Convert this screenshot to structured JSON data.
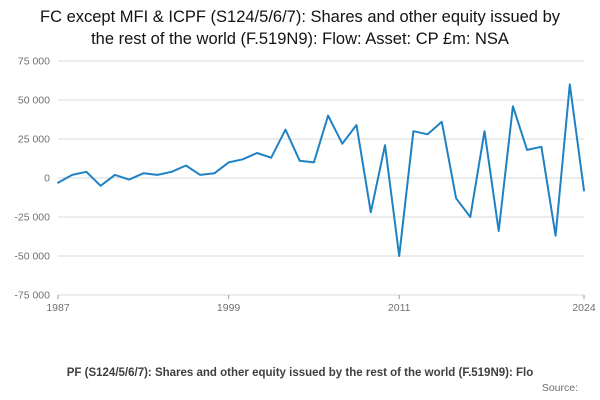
{
  "title": "FC except MFI & ICPF (S124/5/6/7): Shares and other equity issued by the rest of the world (F.519N9): Flow: Asset: CP £m: NSA",
  "footer": {
    "truncated_title": "PF (S124/5/6/7): Shares and other equity issued by the rest of the world (F.519N9): Flo",
    "source_label": "Source:"
  },
  "chart_data": {
    "type": "line",
    "title": "FC except MFI & ICPF (S124/5/6/7): Shares and other equity issued by the rest of the world (F.519N9): Flow: Asset: CP £m: NSA",
    "xlabel": "",
    "ylabel": "",
    "legend": "none",
    "grid": true,
    "line_color": "#1e82c4",
    "grid_color": "#d9d9d9",
    "tick_label_color": "#707070",
    "ylim": [
      -75000,
      75000
    ],
    "x": [
      1987,
      1988,
      1989,
      1990,
      1991,
      1992,
      1993,
      1994,
      1995,
      1996,
      1997,
      1998,
      1999,
      2000,
      2001,
      2002,
      2003,
      2004,
      2005,
      2006,
      2007,
      2008,
      2009,
      2010,
      2011,
      2012,
      2013,
      2014,
      2015,
      2016,
      2017,
      2018,
      2019,
      2020,
      2021,
      2022,
      2023,
      2024
    ],
    "values": [
      -3000,
      2000,
      4000,
      -5000,
      2000,
      -1000,
      3000,
      2000,
      4000,
      8000,
      2000,
      3000,
      10000,
      12000,
      16000,
      13000,
      31000,
      11000,
      10000,
      40000,
      22000,
      34000,
      -22000,
      21000,
      -50000,
      30000,
      28000,
      36000,
      -13000,
      -25000,
      30000,
      -34000,
      46000,
      18000,
      20000,
      -37000,
      60000,
      -8000
    ],
    "yticks": [
      {
        "value": 75000,
        "label": "75 000"
      },
      {
        "value": 50000,
        "label": "50 000"
      },
      {
        "value": 25000,
        "label": "25 000"
      },
      {
        "value": 0,
        "label": "0"
      },
      {
        "value": -25000,
        "label": "-25 000"
      },
      {
        "value": -50000,
        "label": "-50 000"
      },
      {
        "value": -75000,
        "label": "-75 000"
      }
    ],
    "xticks": [
      {
        "value": 1987,
        "label": "1987"
      },
      {
        "value": 1999,
        "label": "1999"
      },
      {
        "value": 2011,
        "label": "2011"
      },
      {
        "value": 2024,
        "label": "2024"
      }
    ]
  }
}
